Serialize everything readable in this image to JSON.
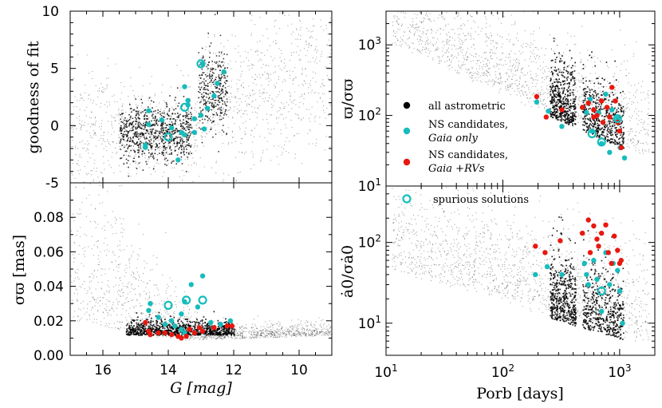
{
  "colors": {
    "background_points": "#000000",
    "gaia_only": "#17bcbc",
    "gaia_rv": "#e8180f",
    "spurious": "#17bcbc"
  },
  "legend": {
    "all_astrometric": "all astrometric",
    "ns_gaia_only_1": "NS candidates,",
    "ns_gaia_only_2": "Gaia only",
    "ns_gaia_rv_1": "NS candidates,",
    "ns_gaia_rv_2": "Gaia +RVs",
    "spurious": "spurious solutions"
  },
  "chart_data": [
    {
      "type": "scatter",
      "panel": "top-left",
      "xlabel": "G [mag]",
      "ylabel": "goodness of fit",
      "xlim": [
        17,
        9
      ],
      "ylim": [
        -5,
        10
      ],
      "xticks": [
        "16",
        "14",
        "12",
        "10"
      ],
      "yticks": [
        "-5",
        "0",
        "5",
        "10"
      ],
      "series": [
        {
          "name": "NS candidates, Gaia only",
          "points": [
            [
              14.6,
              1.3
            ],
            [
              14.7,
              -1.7
            ],
            [
              14.7,
              -1.9
            ],
            [
              14.6,
              0.1
            ],
            [
              14.2,
              0.5
            ],
            [
              13.9,
              -0.2
            ],
            [
              13.6,
              -0.6
            ],
            [
              13.5,
              -0.8
            ],
            [
              13.4,
              1.8
            ],
            [
              13.4,
              2.2
            ],
            [
              13.5,
              3.4
            ],
            [
              13.7,
              -3.0
            ],
            [
              13.2,
              0.6
            ],
            [
              13.0,
              0.9
            ],
            [
              12.9,
              -0.3
            ],
            [
              12.5,
              3.7
            ],
            [
              12.6,
              2.6
            ],
            [
              12.3,
              4.7
            ],
            [
              12.8,
              1.5
            ],
            [
              13.2,
              -0.6
            ],
            [
              12.95,
              5.4
            ]
          ]
        },
        {
          "name": "spurious solutions",
          "points": [
            [
              13.0,
              5.4
            ],
            [
              14.0,
              -1.0
            ],
            [
              13.5,
              1.6
            ]
          ]
        }
      ]
    },
    {
      "type": "scatter",
      "panel": "bottom-left",
      "xlabel": "G [mag]",
      "ylabel": "σϖ [mas]",
      "xlim": [
        17,
        9
      ],
      "ylim": [
        0.0,
        0.1
      ],
      "xticks": [
        "16",
        "14",
        "12",
        "10"
      ],
      "yticks": [
        "0.00",
        "0.02",
        "0.04",
        "0.06",
        "0.08"
      ],
      "series": [
        {
          "name": "NS candidates, Gaia only",
          "points": [
            [
              14.6,
              0.026
            ],
            [
              14.55,
              0.03
            ],
            [
              14.3,
              0.022
            ],
            [
              14.1,
              0.018
            ],
            [
              13.9,
              0.02
            ],
            [
              13.8,
              0.017
            ],
            [
              13.6,
              0.015
            ],
            [
              13.6,
              0.024
            ],
            [
              13.5,
              0.031
            ],
            [
              13.3,
              0.041
            ],
            [
              13.1,
              0.028
            ],
            [
              12.95,
              0.046
            ],
            [
              12.7,
              0.019
            ],
            [
              12.4,
              0.018
            ],
            [
              12.1,
              0.02
            ],
            [
              13.5,
              0.013
            ]
          ]
        },
        {
          "name": "NS candidates, Gaia +RVs",
          "points": [
            [
              14.7,
              0.019
            ],
            [
              14.6,
              0.014
            ],
            [
              14.55,
              0.012
            ],
            [
              14.3,
              0.013
            ],
            [
              14.1,
              0.013
            ],
            [
              13.9,
              0.012
            ],
            [
              13.7,
              0.011
            ],
            [
              13.6,
              0.01
            ],
            [
              13.45,
              0.011
            ],
            [
              13.35,
              0.015
            ],
            [
              13.2,
              0.013
            ],
            [
              13.05,
              0.016
            ],
            [
              12.95,
              0.014
            ],
            [
              12.6,
              0.016
            ],
            [
              12.2,
              0.017
            ],
            [
              12.05,
              0.017
            ]
          ]
        },
        {
          "name": "spurious solutions",
          "points": [
            [
              14.0,
              0.029
            ],
            [
              13.45,
              0.032
            ],
            [
              12.95,
              0.032
            ]
          ]
        }
      ]
    },
    {
      "type": "scatter",
      "panel": "top-right",
      "xlabel": "",
      "ylabel": "ϖ/σϖ",
      "x_scale": "log",
      "y_scale": "log",
      "xlim": [
        10,
        2000
      ],
      "ylim": [
        10,
        3000
      ],
      "yticks": [
        "10^1",
        "10^2",
        "10^3"
      ],
      "series": [
        {
          "name": "NS candidates, Gaia only",
          "points": [
            [
              195,
              155
            ],
            [
              320,
              70
            ],
            [
              245,
              115
            ],
            [
              520,
              110
            ],
            [
              580,
              60
            ],
            [
              660,
              110
            ],
            [
              700,
              40
            ],
            [
              760,
              200
            ],
            [
              820,
              30
            ],
            [
              860,
              120
            ],
            [
              960,
              90
            ],
            [
              1010,
              35
            ],
            [
              1100,
              25
            ],
            [
              560,
              170
            ]
          ]
        },
        {
          "name": "NS candidates, Gaia +RVs",
          "points": [
            [
              195,
              185
            ],
            [
              320,
              120
            ],
            [
              235,
              95
            ],
            [
              480,
              130
            ],
            [
              540,
              150
            ],
            [
              600,
              120
            ],
            [
              640,
              100
            ],
            [
              700,
              160
            ],
            [
              720,
              80
            ],
            [
              780,
              130
            ],
            [
              820,
              95
            ],
            [
              860,
              250
            ],
            [
              920,
              160
            ],
            [
              960,
              80
            ],
            [
              1000,
              60
            ],
            [
              1030,
              35
            ],
            [
              600,
              95
            ]
          ]
        },
        {
          "name": "spurious solutions",
          "points": [
            [
              580,
              55
            ],
            [
              700,
              42
            ],
            [
              960,
              90
            ]
          ]
        }
      ]
    },
    {
      "type": "scatter",
      "panel": "bottom-right",
      "xlabel": "Porb [days]",
      "ylabel": "ȧ0/σȧ0",
      "x_scale": "log",
      "y_scale": "log",
      "xlim": [
        10,
        2000
      ],
      "ylim": [
        4,
        500
      ],
      "xticks": [
        "10^1",
        "10^2",
        "10^3"
      ],
      "yticks": [
        "10^1",
        "10^2"
      ],
      "series": [
        {
          "name": "NS candidates, Gaia only",
          "points": [
            [
              190,
              40
            ],
            [
              240,
              50
            ],
            [
              320,
              40
            ],
            [
              500,
              55
            ],
            [
              540,
              30
            ],
            [
              600,
              60
            ],
            [
              640,
              35
            ],
            [
              700,
              14
            ],
            [
              760,
              75
            ],
            [
              820,
              30
            ],
            [
              880,
              55
            ],
            [
              960,
              45
            ],
            [
              1000,
              25
            ],
            [
              1060,
              10
            ],
            [
              520,
              40
            ]
          ]
        },
        {
          "name": "NS candidates, Gaia +RVs",
          "points": [
            [
              190,
              90
            ],
            [
              230,
              75
            ],
            [
              310,
              105
            ],
            [
              480,
              130
            ],
            [
              540,
              190
            ],
            [
              560,
              75
            ],
            [
              600,
              160
            ],
            [
              640,
              110
            ],
            [
              660,
              90
            ],
            [
              700,
              130
            ],
            [
              760,
              165
            ],
            [
              800,
              75
            ],
            [
              850,
              55
            ],
            [
              900,
              120
            ],
            [
              960,
              80
            ],
            [
              1000,
              55
            ],
            [
              1030,
              60
            ]
          ]
        },
        {
          "name": "spurious solutions",
          "points": [
            [
              700,
              25
            ]
          ]
        }
      ]
    }
  ]
}
